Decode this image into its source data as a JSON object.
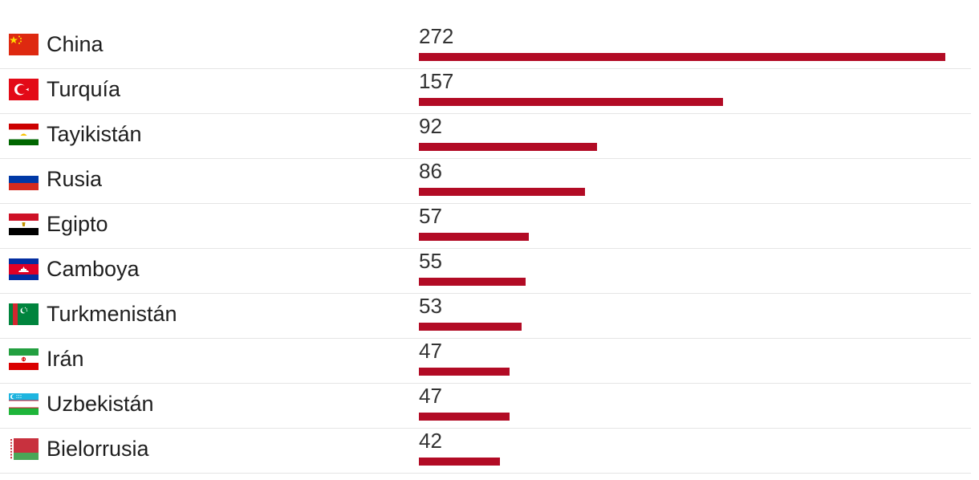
{
  "chart_data": {
    "type": "bar",
    "orientation": "horizontal",
    "title": "",
    "xlabel": "",
    "ylabel": "",
    "xlim": [
      0,
      272
    ],
    "grid": false,
    "legend": "none",
    "colors": {
      "bar": "#b20b25",
      "separator": "#e5e5e5"
    },
    "categories": [
      "China",
      "Turquía",
      "Tayikistán",
      "Rusia",
      "Egipto",
      "Camboya",
      "Turkmenistán",
      "Irán",
      "Uzbekistán",
      "Bielorrusia"
    ],
    "values": [
      272,
      157,
      92,
      86,
      57,
      55,
      53,
      47,
      47,
      42
    ],
    "flags": [
      "flag-china-icon",
      "flag-turkey-icon",
      "flag-tajikistan-icon",
      "flag-russia-icon",
      "flag-egypt-icon",
      "flag-cambodia-icon",
      "flag-turkmenistan-icon",
      "flag-iran-icon",
      "flag-uzbekistan-icon",
      "flag-belarus-icon"
    ]
  }
}
